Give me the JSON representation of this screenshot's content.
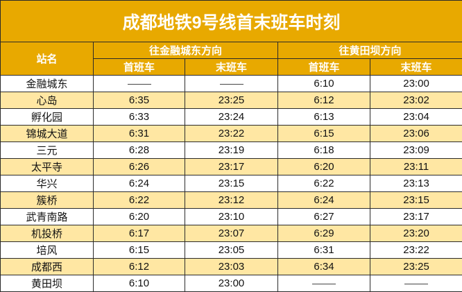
{
  "title": "成都地铁9号线首末班车时刻",
  "header": {
    "station": "站名",
    "direction_1": "往金融城东方向",
    "direction_2": "往黄田坝方向",
    "first_train": "首班车",
    "last_train": "末班车"
  },
  "colors": {
    "header_bg": "#E8A900",
    "alt_row_bg": "#FFE7A3"
  },
  "rows": [
    {
      "station": "金融城东",
      "d1_first": "——",
      "d1_last": "——",
      "d2_first": "6:10",
      "d2_last": "23:00"
    },
    {
      "station": "心岛",
      "d1_first": "6:35",
      "d1_last": "23:25",
      "d2_first": "6:12",
      "d2_last": "23:02"
    },
    {
      "station": "孵化园",
      "d1_first": "6:33",
      "d1_last": "23:24",
      "d2_first": "6:13",
      "d2_last": "23:04"
    },
    {
      "station": "锦城大道",
      "d1_first": "6:31",
      "d1_last": "23:22",
      "d2_first": "6:15",
      "d2_last": "23:06"
    },
    {
      "station": "三元",
      "d1_first": "6:28",
      "d1_last": "23:19",
      "d2_first": "6:18",
      "d2_last": "23:09"
    },
    {
      "station": "太平寺",
      "d1_first": "6:26",
      "d1_last": "23:17",
      "d2_first": "6:20",
      "d2_last": "23:11"
    },
    {
      "station": "华兴",
      "d1_first": "6:24",
      "d1_last": "23:15",
      "d2_first": "6:22",
      "d2_last": "23:13"
    },
    {
      "station": "簇桥",
      "d1_first": "6:22",
      "d1_last": "23:12",
      "d2_first": "6:24",
      "d2_last": "23:15"
    },
    {
      "station": "武青南路",
      "d1_first": "6:20",
      "d1_last": "23:10",
      "d2_first": "6:27",
      "d2_last": "23:17"
    },
    {
      "station": "机投桥",
      "d1_first": "6:17",
      "d1_last": "23:07",
      "d2_first": "6:29",
      "d2_last": "23:20"
    },
    {
      "station": "培风",
      "d1_first": "6:15",
      "d1_last": "23:05",
      "d2_first": "6:31",
      "d2_last": "23:22"
    },
    {
      "station": "成都西",
      "d1_first": "6:12",
      "d1_last": "23:03",
      "d2_first": "6:34",
      "d2_last": "23:25"
    },
    {
      "station": "黄田坝",
      "d1_first": "6:10",
      "d1_last": "23:00",
      "d2_first": "——",
      "d2_last": "——"
    }
  ]
}
